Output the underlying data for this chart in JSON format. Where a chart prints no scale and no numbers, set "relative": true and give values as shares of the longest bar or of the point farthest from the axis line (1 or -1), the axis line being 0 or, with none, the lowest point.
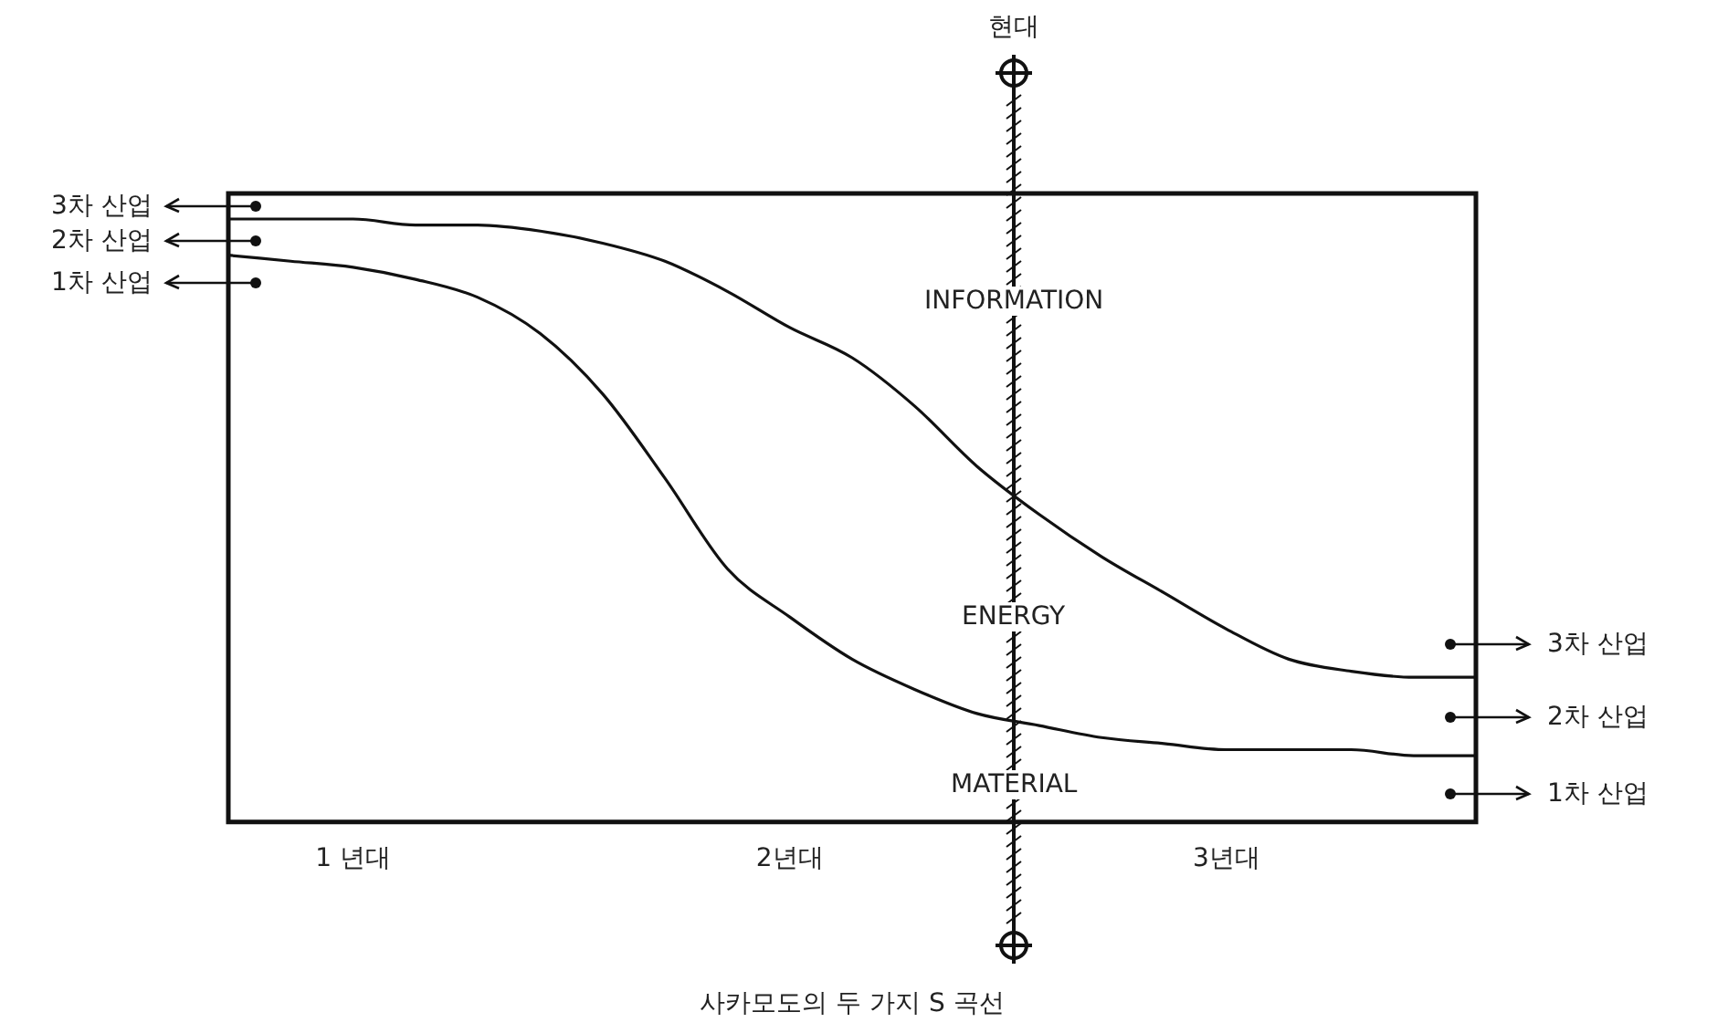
{
  "chart_data": {
    "type": "line",
    "title": "사카모도의 두 가지 S 곡선",
    "categories": [
      null,
      null,
      "1 년대",
      null,
      null,
      null,
      null,
      null,
      null,
      "2년대",
      null,
      null,
      null,
      null,
      null,
      null,
      "3년대",
      null,
      null,
      null,
      null
    ],
    "relative": true,
    "series": [
      {
        "color": "#111111",
        "values": [
          1.0,
          1.0,
          1.0,
          0.99,
          0.99,
          0.98,
          0.96,
          0.93,
          0.88,
          0.82,
          0.77,
          0.69,
          0.59,
          0.51,
          0.44,
          0.38,
          0.32,
          0.27,
          0.25,
          0.24,
          0.24
        ]
      },
      {
        "color": "#111111",
        "values": [
          0.94,
          0.93,
          0.92,
          0.9,
          0.87,
          0.81,
          0.71,
          0.57,
          0.42,
          0.34,
          0.27,
          0.22,
          0.18,
          0.16,
          0.14,
          0.13,
          0.12,
          0.12,
          0.12,
          0.11,
          0.11
        ]
      }
    ],
    "annotations": [
      "현대",
      "INFORMATION",
      "ENERGY",
      "MATERIAL",
      "3차 산업",
      "2차 산업",
      "1차 산업",
      "3차 산업",
      "2차 산업",
      "1차 산업"
    ],
    "legend": false,
    "grid": false
  }
}
